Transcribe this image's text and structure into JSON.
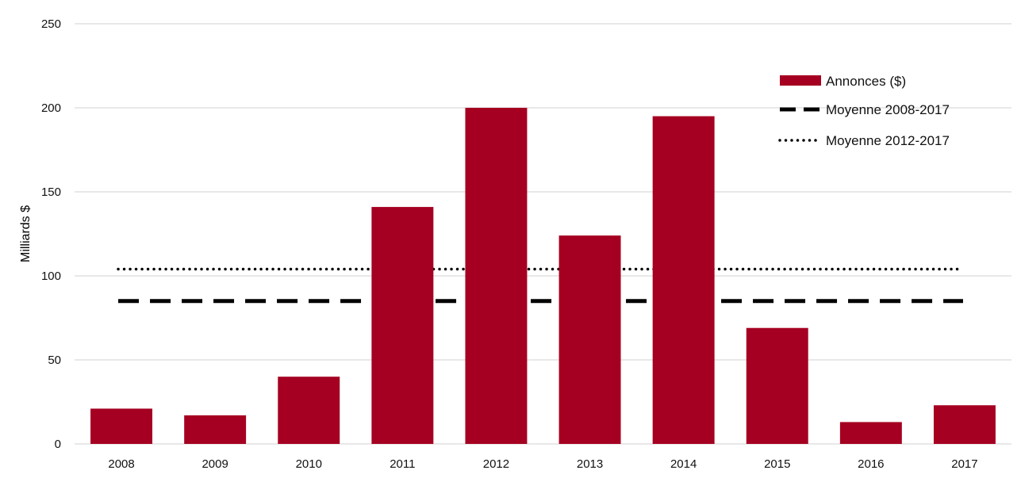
{
  "chart_data": {
    "type": "bar",
    "title": "",
    "xlabel": "",
    "ylabel": "Milliards $",
    "ylim": [
      0,
      250
    ],
    "yticks": [
      0,
      50,
      100,
      150,
      200,
      250
    ],
    "grid": true,
    "legend_position": "top-right",
    "categories": [
      "2008",
      "2009",
      "2010",
      "2011",
      "2012",
      "2013",
      "2014",
      "2015",
      "2016",
      "2017"
    ],
    "series": [
      {
        "name": "Annonces ($)",
        "type": "bar",
        "color": "#A50021",
        "values": [
          21,
          17,
          40,
          141,
          200,
          124,
          195,
          69,
          13,
          23
        ]
      }
    ],
    "reference_lines": [
      {
        "name": "Moyenne 2008-2017",
        "value": 85,
        "style": "dashed",
        "color": "#000000"
      },
      {
        "name": "Moyenne 2012-2017",
        "value": 104,
        "style": "dotted",
        "color": "#000000"
      }
    ]
  }
}
